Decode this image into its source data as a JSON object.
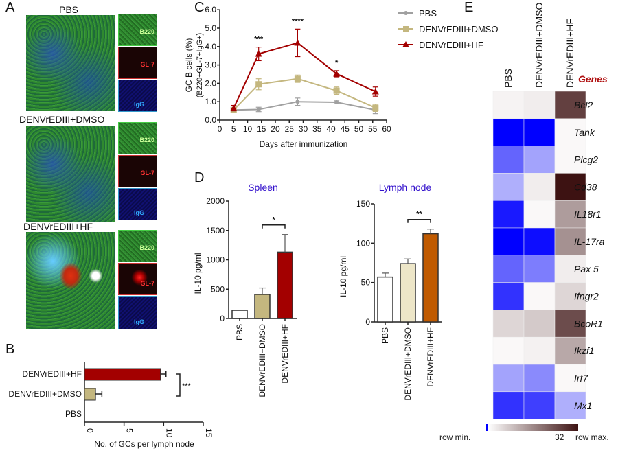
{
  "panels": {
    "a": "A",
    "b": "B",
    "c": "C",
    "d": "D",
    "e": "E"
  },
  "panel_a": {
    "groups": [
      "PBS",
      "DENVrEDIII+DMSO",
      "DENVrEDIII+HF"
    ],
    "channels": [
      "B220",
      "GL-7",
      "IgG"
    ]
  },
  "chart_data": [
    {
      "id": "B",
      "type": "bar",
      "orientation": "horizontal",
      "categories": [
        "DENVrEDIII+HF",
        "DENVrEDIII+DMSO",
        "PBS"
      ],
      "values": [
        9.6,
        1.4,
        0
      ],
      "errors": [
        0.7,
        0.8,
        0
      ],
      "colors": [
        "#a30000",
        "#c4b77f",
        "#ffffff"
      ],
      "xlabel": "No. of GCs per lymph node",
      "xlim": [
        0,
        15
      ],
      "xticks": [
        "0",
        "5",
        "10",
        "15"
      ],
      "annotation": "***"
    },
    {
      "id": "C",
      "type": "line",
      "x": [
        5,
        14,
        28,
        42,
        56
      ],
      "series": [
        {
          "name": "PBS",
          "values": [
            0.55,
            0.58,
            1.0,
            0.97,
            0.55
          ],
          "errors": [
            0.1,
            0.12,
            0.2,
            0.08,
            0.2
          ],
          "color": "#a0a0a0",
          "marker": "circle"
        },
        {
          "name": "DENVrEDIII+DMSO",
          "values": [
            0.55,
            1.95,
            2.25,
            1.6,
            0.67
          ],
          "errors": [
            0.1,
            0.3,
            0.2,
            0.2,
            0.2
          ],
          "color": "#c4b77f",
          "marker": "square"
        },
        {
          "name": "DENVrEDIII+HF",
          "values": [
            0.65,
            3.6,
            4.2,
            2.52,
            1.55
          ],
          "errors": [
            0.15,
            0.37,
            0.75,
            0.17,
            0.25
          ],
          "color": "#a30000",
          "marker": "triangle"
        }
      ],
      "annotations": [
        {
          "x": 14,
          "text": "***"
        },
        {
          "x": 28,
          "text": "****"
        },
        {
          "x": 42,
          "text": "*"
        }
      ],
      "xlabel": "Days after immunization",
      "ylabel": "GC B cells (%)",
      "ylabel2": "(B220+GL-7+IgG+)",
      "xlim": [
        0,
        60
      ],
      "ylim": [
        0,
        6
      ],
      "xticks": [
        "0",
        "5",
        "10",
        "15",
        "20",
        "25",
        "30",
        "35",
        "40",
        "45",
        "50",
        "55",
        "60"
      ],
      "yticks": [
        "0.0",
        "1.0",
        "2.0",
        "3.0",
        "4.0",
        "5.0",
        "6.0"
      ],
      "legend": "top-right"
    },
    {
      "id": "D1",
      "type": "bar",
      "title": "Spleen",
      "categories": [
        "PBS",
        "DENVrEDIII+DMSO",
        "DENVrEDIII+HF"
      ],
      "values": [
        140,
        410,
        1130
      ],
      "errors": [
        0,
        110,
        300
      ],
      "colors": [
        "#ffffff",
        "#c4b77f",
        "#a30000"
      ],
      "ylabel": "IL-10 pg/ml",
      "ylim": [
        0,
        2000
      ],
      "yticks": [
        "0",
        "500",
        "1000",
        "1500",
        "2000"
      ],
      "annotation": "*"
    },
    {
      "id": "D2",
      "type": "bar",
      "title": "Lymph node",
      "categories": [
        "PBS",
        "DENVrEDIII+DMSO",
        "DENVrEDIII+HF"
      ],
      "values": [
        57,
        74,
        112
      ],
      "errors": [
        5,
        6,
        6
      ],
      "colors": [
        "#ffffff",
        "#ede6c8",
        "#c05a00"
      ],
      "ylabel": "IL-10 pg/ml",
      "ylim": [
        0,
        150
      ],
      "yticks": [
        "0",
        "50",
        "100",
        "150"
      ],
      "annotation": "**"
    },
    {
      "id": "E",
      "type": "heatmap",
      "columns": [
        "PBS",
        "DENVrEDIII+DMSO",
        "DENVrEDIII+HF"
      ],
      "genes_header": "Genes",
      "rows": [
        "Bcl2",
        "Tank",
        "Plcg2",
        "Cd38",
        "IL18r1",
        "IL-17ra",
        "Pax 5",
        "Ifngr2",
        "BcoR1",
        "Ikzf1",
        "Irf7",
        "Mx1"
      ],
      "values": [
        [
          0.02,
          0.05,
          0.8
        ],
        [
          -1,
          -1,
          0
        ],
        [
          -0.6,
          -0.35,
          0
        ],
        [
          -0.3,
          0.05,
          1
        ],
        [
          -0.9,
          0,
          0.4
        ],
        [
          -1,
          -0.95,
          0.45
        ],
        [
          -0.6,
          -0.5,
          0.05
        ],
        [
          -0.8,
          0,
          0.15
        ],
        [
          0.15,
          0.2,
          0.75
        ],
        [
          0,
          0.03,
          0.35
        ],
        [
          -0.35,
          -0.45,
          0
        ],
        [
          -0.8,
          -0.75,
          -0.3
        ]
      ],
      "scale": {
        "min_label": "row min.",
        "max_label": "row max.",
        "max_value": "32",
        "min_color": "#0000ff",
        "mid_color": "#ffffff",
        "max_color": "#3d1212"
      }
    }
  ]
}
